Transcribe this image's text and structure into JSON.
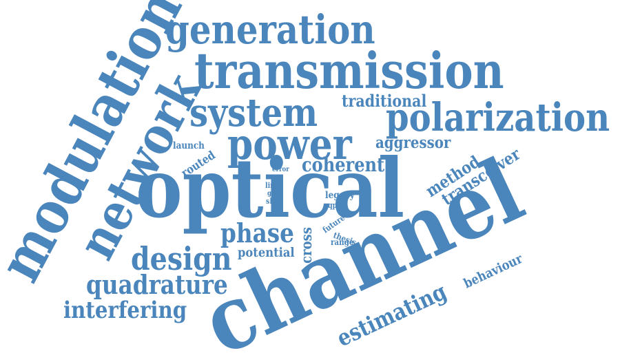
{
  "word_color": "#4a85bb",
  "words": [
    {
      "id": "optical",
      "text": "optical"
    },
    {
      "id": "channel",
      "text": "channel"
    },
    {
      "id": "modulation",
      "text": "modulation"
    },
    {
      "id": "network",
      "text": "network"
    },
    {
      "id": "transmission",
      "text": "transmission"
    },
    {
      "id": "generation",
      "text": "generation"
    },
    {
      "id": "system",
      "text": "system"
    },
    {
      "id": "power",
      "text": "power"
    },
    {
      "id": "polarization",
      "text": "polarization"
    },
    {
      "id": "traditional",
      "text": "traditional"
    },
    {
      "id": "aggressor",
      "text": "aggressor"
    },
    {
      "id": "coherent",
      "text": "coherent"
    },
    {
      "id": "launch",
      "text": "launch"
    },
    {
      "id": "routed",
      "text": "routed"
    },
    {
      "id": "error",
      "text": "error"
    },
    {
      "id": "link",
      "text": "link"
    },
    {
      "id": "grid",
      "text": "grid"
    },
    {
      "id": "shift",
      "text": "shift"
    },
    {
      "id": "legacy",
      "text": "legacy"
    },
    {
      "id": "qpsk",
      "text": "qpsk"
    },
    {
      "id": "method",
      "text": "method"
    },
    {
      "id": "transceiver",
      "text": "transceiver"
    },
    {
      "id": "phase",
      "text": "phase"
    },
    {
      "id": "cross",
      "text": "cross"
    },
    {
      "id": "future",
      "text": "future"
    },
    {
      "id": "thesis",
      "text": "thesis"
    },
    {
      "id": "range",
      "text": "range"
    },
    {
      "id": "potential",
      "text": "potential"
    },
    {
      "id": "design",
      "text": "design"
    },
    {
      "id": "quadrature",
      "text": "quadrature"
    },
    {
      "id": "interfering",
      "text": "interfering"
    },
    {
      "id": "estimating",
      "text": "estimating"
    },
    {
      "id": "behaviour",
      "text": "behaviour"
    }
  ]
}
